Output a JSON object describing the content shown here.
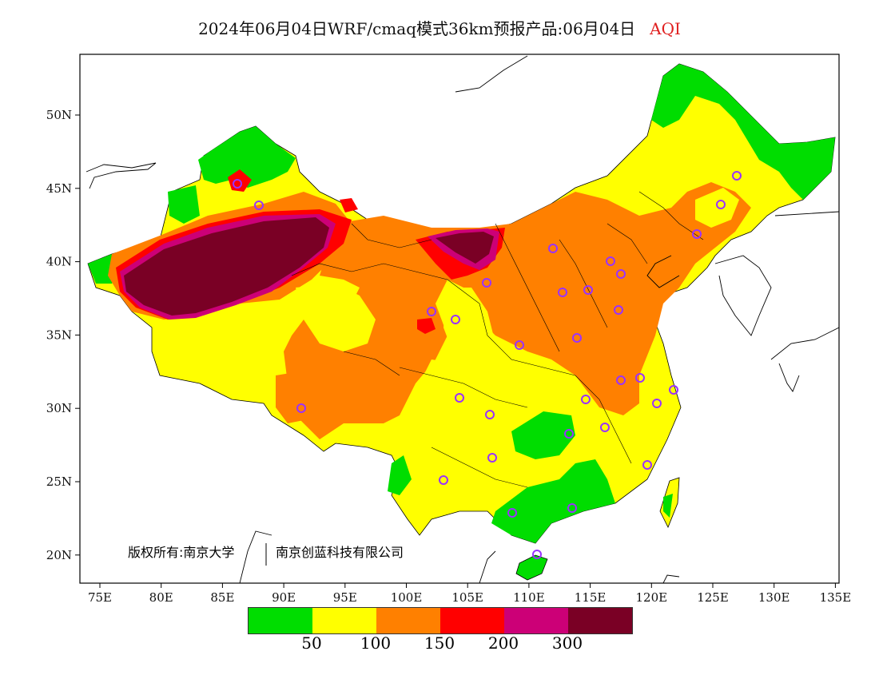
{
  "title": {
    "main": "2024年06月04日WRF/cmaq模式36km预报产品:06月04日",
    "variable": "AQI"
  },
  "axes": {
    "x_labels": [
      "75E",
      "80E",
      "85E",
      "90E",
      "95E",
      "100E",
      "105E",
      "110E",
      "115E",
      "120E",
      "125E",
      "130E",
      "135E"
    ],
    "y_labels": [
      "50N",
      "45N",
      "40N",
      "35N",
      "30N",
      "25N",
      "20N"
    ]
  },
  "copyright": {
    "left": "版权所有:南京大学",
    "right": "南京创蓝科技有限公司"
  },
  "legend": {
    "colors": [
      "#00dd00",
      "#ffff00",
      "#ff8000",
      "#ff0000",
      "#cc0077",
      "#7a0025"
    ],
    "labels": [
      "50",
      "100",
      "150",
      "200",
      "300"
    ]
  },
  "colors": {
    "good": "#00dd00",
    "moderate": "#ffff00",
    "unhealthy_sensitive": "#ff8000",
    "unhealthy": "#ff0000",
    "very_unhealthy": "#cc0077",
    "hazardous": "#7a0025",
    "station_marker": "#9a32ff"
  }
}
